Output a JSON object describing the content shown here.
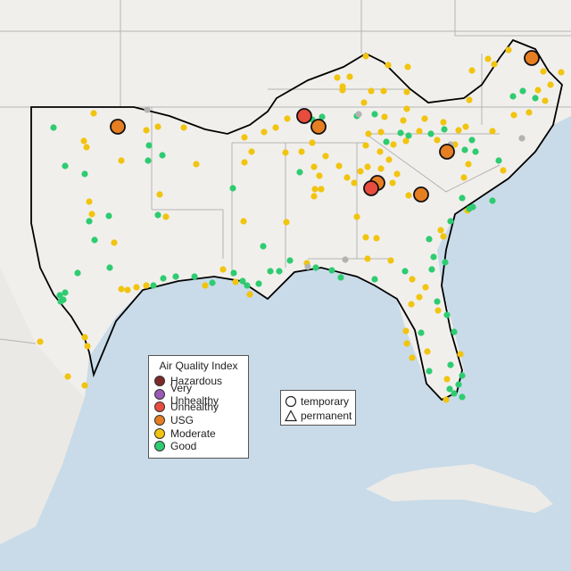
{
  "legend": {
    "title": "Air Quality Index",
    "categories": [
      {
        "label": "Hazardous",
        "color": "#7e2a2a"
      },
      {
        "label": "Very Unhealthy",
        "color": "#9b59b6"
      },
      {
        "label": "Unhealthy",
        "color": "#e84c3d"
      },
      {
        "label": "USG",
        "color": "#e67e22"
      },
      {
        "label": "Moderate",
        "color": "#f1c40f"
      },
      {
        "label": "Good",
        "color": "#2ecc71"
      }
    ],
    "no_data_color": "#b3b3b3"
  },
  "type_legend": {
    "temporary": "temporary",
    "permanent": "permanent"
  },
  "colors": {
    "land": "#f1efec",
    "water": "#c9dbe8",
    "region_outline": "#000000",
    "state_lines": "#b4b4b4"
  }
}
